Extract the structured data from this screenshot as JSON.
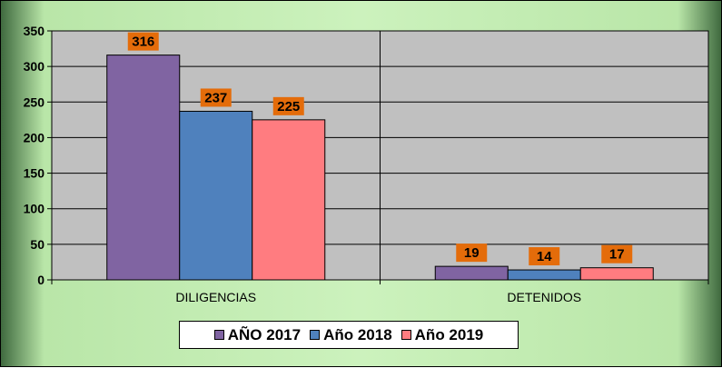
{
  "chart_data": {
    "type": "bar",
    "categories": [
      "DILIGENCIAS",
      "DETENIDOS"
    ],
    "series": [
      {
        "name": "AÑO 2017",
        "values": [
          316,
          19
        ],
        "color": "#8064a2"
      },
      {
        "name": "Año 2018",
        "values": [
          237,
          14
        ],
        "color": "#4f81bd"
      },
      {
        "name": "Año 2019",
        "values": [
          225,
          17
        ],
        "color": "#ff7c80"
      }
    ],
    "ylim": [
      0,
      350
    ],
    "yticks": [
      0,
      50,
      100,
      150,
      200,
      250,
      300,
      350
    ],
    "grid": true,
    "legend_position": "bottom",
    "data_label_color": "#e46c0a",
    "plot_background": "#c0c0c0"
  }
}
